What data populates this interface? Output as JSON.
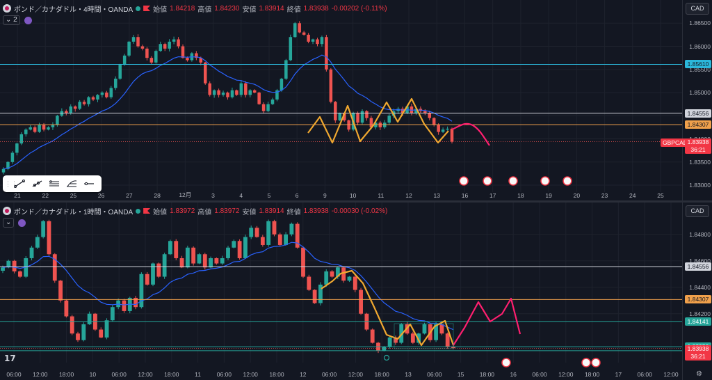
{
  "top_pane": {
    "title": "ポンド／カナダドル・4時間・OANDA",
    "ohlc": [
      {
        "k": "始値",
        "v": "1.84218"
      },
      {
        "k": "高値",
        "v": "1.84230"
      },
      {
        "k": "安値",
        "v": "1.83914"
      },
      {
        "k": "終値",
        "v": "1.83938"
      }
    ],
    "change": "-0.00202 (-0.11%)",
    "collapse_label": "2",
    "currency": "CAD",
    "symbol_tag": "GBPCAD",
    "price_tag_value": "1.83938",
    "price_tag_timer": "36:21",
    "colors": {
      "up": "#26a69a",
      "down": "#ef5350",
      "ma": "#2962ff",
      "pattern": "#f0a830",
      "forecast": "#ff1f6f",
      "cyan": "#2bb7da",
      "orange": "#f0a04b"
    }
  },
  "bottom_pane": {
    "title": "ポンド／カナダドル・1時間・OANDA",
    "ohlc": [
      {
        "k": "始値",
        "v": "1.83972"
      },
      {
        "k": "高値",
        "v": "1.83972"
      },
      {
        "k": "安値",
        "v": "1.83914"
      },
      {
        "k": "終値",
        "v": "1.83938"
      }
    ],
    "change": "-0.00030 (-0.02%)",
    "currency": "CAD",
    "price_tag_value": "1.83938",
    "price_tag_timer": "36:21"
  },
  "chart_data": [
    {
      "type": "candlestick",
      "pane": "top",
      "ylim": [
        1.8285,
        1.8685
      ],
      "y_ticks": [
        "1.86500",
        "1.86000",
        "1.85500",
        "1.85000",
        "1.84500",
        "1.84000",
        "1.83500",
        "1.83000"
      ],
      "x_ticks": [
        "21",
        "22",
        "25",
        "26",
        "27",
        "28",
        "12月",
        "3",
        "4",
        "5",
        "6",
        "9",
        "10",
        "11",
        "12",
        "13",
        "16",
        "17",
        "18",
        "19",
        "20",
        "23",
        "24",
        "25"
      ],
      "hlines": [
        {
          "value": 1.8561,
          "label": "1.85610",
          "color": "#2bb7da"
        },
        {
          "value": 1.84556,
          "label": "1.84556",
          "color": "#d1d4dc"
        },
        {
          "value": 1.84307,
          "label": "1.84307",
          "color": "#f0a04b"
        }
      ],
      "last_price": 1.83938,
      "closes": [
        1.8335,
        1.835,
        1.837,
        1.839,
        1.841,
        1.842,
        1.8425,
        1.8415,
        1.843,
        1.842,
        1.8425,
        1.843,
        1.845,
        1.846,
        1.8455,
        1.847,
        1.8465,
        1.848,
        1.8475,
        1.849,
        1.8485,
        1.8495,
        1.85,
        1.849,
        1.851,
        1.853,
        1.856,
        1.858,
        1.861,
        1.862,
        1.86,
        1.8595,
        1.8575,
        1.8565,
        1.859,
        1.8605,
        1.8595,
        1.861,
        1.8615,
        1.86,
        1.8575,
        1.857,
        1.8585,
        1.8575,
        1.8565,
        1.852,
        1.8495,
        1.8505,
        1.8495,
        1.85,
        1.849,
        1.8505,
        1.8495,
        1.852,
        1.8495,
        1.8505,
        1.85,
        1.8475,
        1.846,
        1.8475,
        1.8485,
        1.8505,
        1.853,
        1.857,
        1.862,
        1.865,
        1.863,
        1.8625,
        1.861,
        1.8615,
        1.8605,
        1.862,
        1.855,
        1.848,
        1.844,
        1.8455,
        1.844,
        1.842,
        1.8455,
        1.8435,
        1.846,
        1.8445,
        1.8425,
        1.8435,
        1.8425,
        1.8435,
        1.845,
        1.846,
        1.8465,
        1.8455,
        1.847,
        1.8455,
        1.8465,
        1.846,
        1.8455,
        1.8445,
        1.843,
        1.8415,
        1.842,
        1.8422,
        1.8394
      ]
    },
    {
      "type": "candlestick",
      "pane": "bottom",
      "ylim": [
        1.8383,
        1.8502
      ],
      "y_ticks": [
        "1.84800",
        "1.84600",
        "1.84400",
        "1.84200"
      ],
      "x_ticks": [
        "06:00",
        "12:00",
        "18:00",
        "10",
        "06:00",
        "12:00",
        "18:00",
        "11",
        "06:00",
        "12:00",
        "18:00",
        "12",
        "06:00",
        "12:00",
        "18:00",
        "13",
        "06:00",
        "15",
        "18:00",
        "16",
        "06:00",
        "12:00",
        "18:00",
        "17",
        "06:00",
        "12:00"
      ],
      "hlines": [
        {
          "value": 1.84556,
          "label": "1.84556",
          "color": "#d1d4dc"
        },
        {
          "value": 1.84307,
          "label": "1.84307",
          "color": "#f0a04b"
        },
        {
          "value": 1.84141,
          "label": "1.84141",
          "color": "#26a69a"
        },
        {
          "value": 1.8395,
          "label": "1.83950",
          "color": "#26a69a"
        },
        {
          "value": 1.8392,
          "label": "1.83920",
          "color": "#26a69a"
        }
      ],
      "last_price": 1.83938,
      "closes": [
        1.8455,
        1.846,
        1.8452,
        1.8448,
        1.8462,
        1.847,
        1.8478,
        1.849,
        1.8465,
        1.8445,
        1.843,
        1.8418,
        1.8405,
        1.84,
        1.8412,
        1.842,
        1.8408,
        1.8402,
        1.8415,
        1.8425,
        1.843,
        1.8422,
        1.8432,
        1.8425,
        1.845,
        1.8442,
        1.8458,
        1.8448,
        1.8465,
        1.8475,
        1.8462,
        1.8455,
        1.847,
        1.8458,
        1.8465,
        1.8455,
        1.8462,
        1.8458,
        1.8462,
        1.847,
        1.8475,
        1.8462,
        1.8478,
        1.8485,
        1.8478,
        1.8472,
        1.849,
        1.848,
        1.8472,
        1.848,
        1.8488,
        1.847,
        1.8448,
        1.8438,
        1.8428,
        1.8442,
        1.8452,
        1.8448,
        1.8455,
        1.8445,
        1.8448,
        1.8438,
        1.842,
        1.8408,
        1.8398,
        1.8392,
        1.8395,
        1.8402,
        1.8398,
        1.8412,
        1.8405,
        1.8398,
        1.8405,
        1.8412,
        1.84,
        1.8412,
        1.8405,
        1.8395,
        1.8394
      ]
    }
  ]
}
